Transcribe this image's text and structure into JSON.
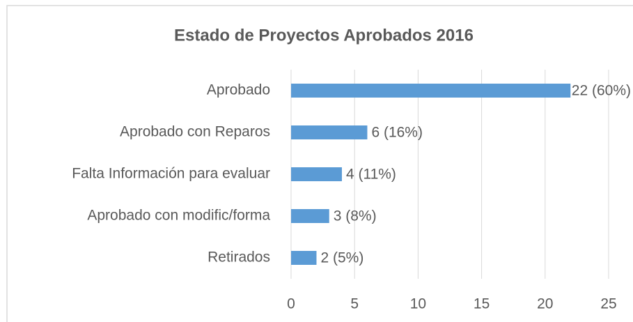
{
  "chart_data": {
    "type": "hbar",
    "title": "Estado de Proyectos Aprobados 2016",
    "categories": [
      "Aprobado",
      "Aprobado con Reparos",
      "Falta Información para evaluar",
      "Aprobado con modific/forma",
      "Retirados"
    ],
    "values": [
      22,
      6,
      4,
      3,
      2
    ],
    "value_labels": [
      "22 (60%)",
      "6 (16%)",
      "4 (11%)",
      "3 (8%)",
      "2 (5%)"
    ],
    "color": "#5b9bd5",
    "xlim": [
      0,
      25
    ],
    "xticks": [
      0,
      5,
      10,
      15,
      20,
      25
    ],
    "grid": true
  }
}
